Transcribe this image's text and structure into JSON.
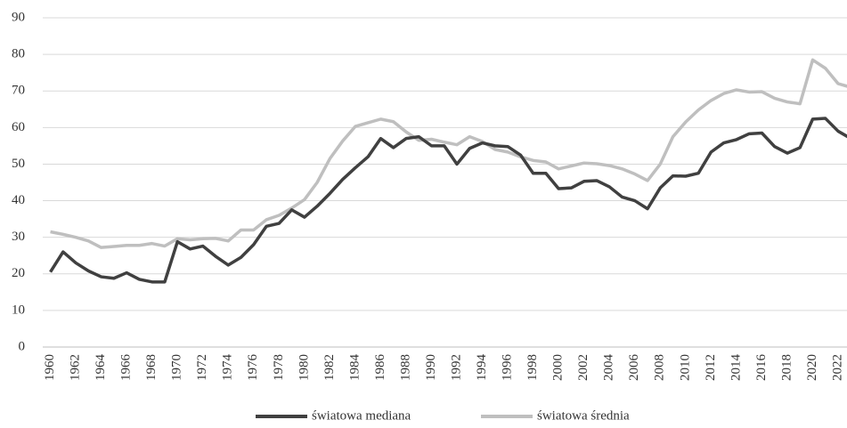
{
  "chart_data": {
    "type": "line",
    "x": [
      1960,
      1961,
      1962,
      1963,
      1964,
      1965,
      1966,
      1967,
      1968,
      1969,
      1970,
      1971,
      1972,
      1973,
      1974,
      1975,
      1976,
      1977,
      1978,
      1979,
      1980,
      1981,
      1982,
      1983,
      1984,
      1985,
      1986,
      1987,
      1988,
      1989,
      1990,
      1991,
      1992,
      1993,
      1994,
      1995,
      1996,
      1997,
      1998,
      1999,
      2000,
      2001,
      2002,
      2003,
      2004,
      2005,
      2006,
      2007,
      2008,
      2009,
      2010,
      2011,
      2012,
      2013,
      2014,
      2015,
      2016,
      2017,
      2018,
      2019,
      2020,
      2021,
      2022,
      2023
    ],
    "series": [
      {
        "name": "światowa mediana",
        "color": "#404040",
        "values": [
          20.5,
          26,
          23,
          20.8,
          19.2,
          18.8,
          20.3,
          18.5,
          17.8,
          17.8,
          28.8,
          26.8,
          27.6,
          24.8,
          22.4,
          24.5,
          28,
          33,
          33.8,
          37.5,
          35.5,
          38.5,
          42,
          45.8,
          49,
          52,
          57,
          54.5,
          57,
          57.5,
          55,
          55,
          50,
          54.3,
          55.8,
          55,
          54.8,
          52.5,
          47.5,
          47.5,
          43.3,
          43.5,
          45.3,
          45.5,
          43.8,
          41,
          40,
          37.8,
          43.5,
          46.8,
          46.7,
          47.5,
          53.3,
          55.8,
          56.7,
          58.3,
          58.5,
          54.8,
          53,
          54.5,
          62.3,
          62.5,
          59,
          57
        ]
      },
      {
        "name": "światowa średnia",
        "color": "#bfbfbf",
        "values": [
          31.5,
          30.8,
          30,
          29,
          27.2,
          27.5,
          27.8,
          27.8,
          28.3,
          27.6,
          29.6,
          29.3,
          29.6,
          29.7,
          29,
          32,
          32,
          34.8,
          36,
          38,
          40.3,
          45,
          51.5,
          56.3,
          60.3,
          61.3,
          62.3,
          61.6,
          58.8,
          56.5,
          56.8,
          56,
          55.3,
          57.5,
          56.2,
          54,
          53.3,
          52,
          51,
          50.6,
          48.7,
          49.5,
          50.3,
          50.1,
          49.6,
          48.7,
          47.3,
          45.5,
          50,
          57.5,
          61.5,
          64.8,
          67.4,
          69.3,
          70.3,
          69.7,
          69.8,
          68,
          67,
          66.5,
          78.5,
          76.2,
          72,
          71
        ]
      }
    ],
    "xlim": [
      1959.4,
      2022.7
    ],
    "xticks": [
      1960,
      1962,
      1964,
      1966,
      1968,
      1970,
      1972,
      1974,
      1976,
      1978,
      1980,
      1982,
      1984,
      1986,
      1988,
      1990,
      1992,
      1994,
      1996,
      1998,
      2000,
      2002,
      2004,
      2006,
      2008,
      2010,
      2012,
      2014,
      2016,
      2018,
      2020,
      2022
    ],
    "ylim": [
      0,
      90
    ],
    "yticks": [
      0,
      10,
      20,
      30,
      40,
      50,
      60,
      70,
      80,
      90
    ],
    "grid": true,
    "legend": "bottom"
  }
}
